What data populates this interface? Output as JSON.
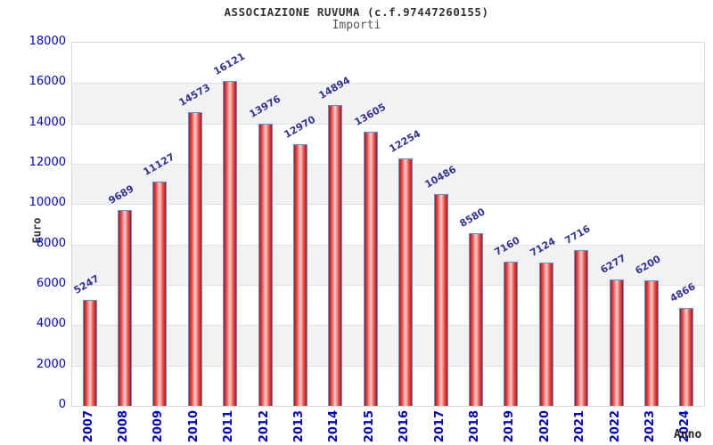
{
  "chart_data": {
    "type": "bar",
    "title": "ASSOCIAZIONE RUVUMA (c.f.97447260155)",
    "subtitle": "Importi",
    "xlabel": "Anno",
    "ylabel": "Euro",
    "categories": [
      "2007",
      "2008",
      "2009",
      "2010",
      "2011",
      "2012",
      "2013",
      "2014",
      "2015",
      "2016",
      "2017",
      "2018",
      "2019",
      "2020",
      "2021",
      "2022",
      "2023",
      "2024"
    ],
    "values": [
      5247,
      9689,
      11127,
      14573,
      16121,
      13976,
      12970,
      14894,
      13605,
      12254,
      10486,
      8580,
      7160,
      7124,
      7716,
      6277,
      6200,
      4866
    ],
    "ylim": [
      0,
      18000
    ],
    "ytick_step": 2000,
    "grid": true,
    "legend": false,
    "value_labels_rotated": true,
    "colors": {
      "bar_dark": "#b51218",
      "bar_mid": "#ea4a45",
      "bar_light": "#fcd2cf",
      "bar_border": "#4d9be6",
      "value_label": "#333399",
      "ytick_label": "#0000e0",
      "xtick_label": "#0000cc",
      "band_gray": "#f2f2f2",
      "band_white": "#ffffff",
      "gridline": "#e2e2e2"
    }
  }
}
